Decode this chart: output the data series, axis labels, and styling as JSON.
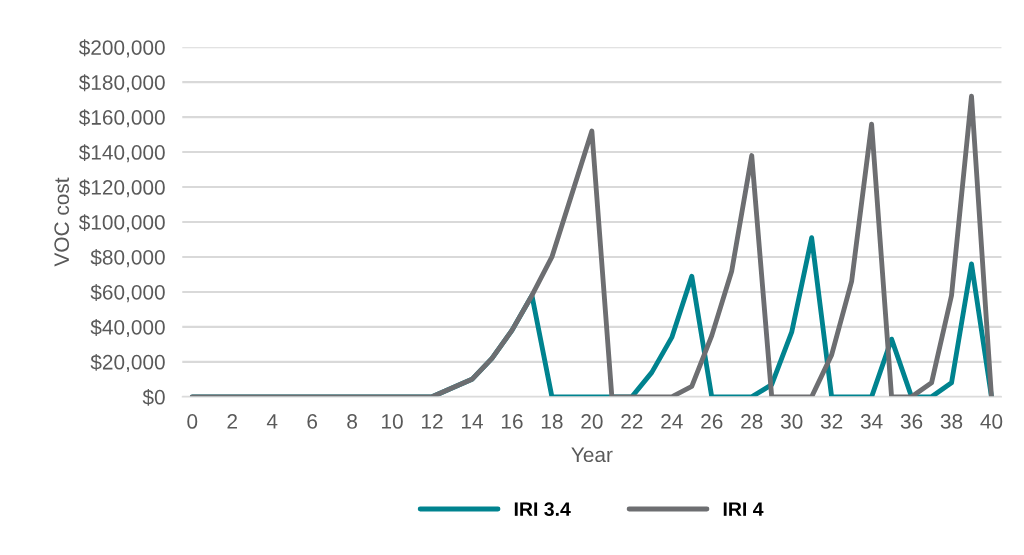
{
  "chart_data": {
    "type": "line",
    "xlabel": "Year",
    "ylabel": "VOC cost",
    "x": [
      0,
      1,
      2,
      3,
      4,
      5,
      6,
      7,
      8,
      9,
      10,
      11,
      12,
      13,
      14,
      15,
      16,
      17,
      18,
      19,
      20,
      21,
      22,
      23,
      24,
      25,
      26,
      27,
      28,
      29,
      30,
      31,
      32,
      33,
      34,
      35,
      36,
      37,
      38,
      39,
      40
    ],
    "series": [
      {
        "name": "IRI 3.4",
        "color": "#00838f",
        "values": [
          0,
          0,
          0,
          0,
          0,
          0,
          0,
          0,
          0,
          0,
          0,
          0,
          0,
          5000,
          10000,
          22000,
          38000,
          58000,
          0,
          0,
          0,
          0,
          0,
          14000,
          34000,
          69000,
          0,
          0,
          0,
          7000,
          37000,
          91000,
          0,
          0,
          0,
          33000,
          0,
          0,
          8000,
          76000,
          0
        ]
      },
      {
        "name": "IRI 4",
        "color": "#6d6e71",
        "values": [
          0,
          0,
          0,
          0,
          0,
          0,
          0,
          0,
          0,
          0,
          0,
          0,
          0,
          5000,
          10000,
          22000,
          38000,
          58000,
          80000,
          116000,
          152000,
          0,
          0,
          0,
          0,
          6000,
          35000,
          72000,
          138000,
          0,
          0,
          0,
          24000,
          66000,
          156000,
          0,
          0,
          8000,
          58000,
          172000,
          0
        ]
      }
    ],
    "xlim": [
      -0.5,
      40.5
    ],
    "xticks": [
      0,
      2,
      4,
      6,
      8,
      10,
      12,
      14,
      16,
      18,
      20,
      22,
      24,
      26,
      28,
      30,
      32,
      34,
      36,
      38,
      40
    ],
    "ylim": [
      0,
      200000
    ],
    "yticks": [
      {
        "value": 0,
        "label": "$0"
      },
      {
        "value": 20000,
        "label": "$20,000"
      },
      {
        "value": 40000,
        "label": "$40,000"
      },
      {
        "value": 60000,
        "label": "$60,000"
      },
      {
        "value": 80000,
        "label": "$80,000"
      },
      {
        "value": 100000,
        "label": "$100,000"
      },
      {
        "value": 120000,
        "label": "$120,000"
      },
      {
        "value": 140000,
        "label": "$140,000"
      },
      {
        "value": 160000,
        "label": "$160,000"
      },
      {
        "value": 180000,
        "label": "$180,000"
      },
      {
        "value": 200000,
        "label": "$200,000"
      }
    ],
    "grid": "y",
    "legend": "bottom",
    "marker": "none",
    "line_style": "solid"
  }
}
